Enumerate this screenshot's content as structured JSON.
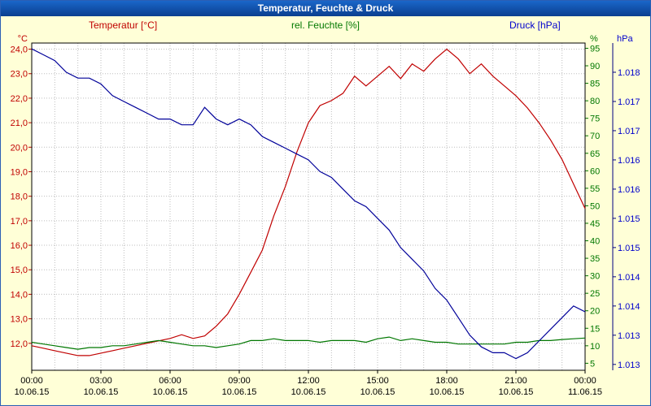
{
  "window": {
    "title": "Temperatur, Feuchte & Druck"
  },
  "colors": {
    "background": "#ffffd7",
    "titlebar": "#0a3f8f",
    "temperature": "#c00000",
    "humidity": "#007700",
    "pressure_line": "#000099",
    "pressure_text": "#0000cc",
    "grid": "#bdbdbd",
    "frame": "#000000"
  },
  "chart_data": {
    "type": "line",
    "title": "Temperatur, Feuchte & Druck",
    "grid": "dotted, hourly vertical and 1°C horizontal",
    "legend_position": "top",
    "x_axis": {
      "hours_total": 24,
      "tick_hours": [
        0,
        3,
        6,
        9,
        12,
        15,
        18,
        21,
        24
      ],
      "time_labels": [
        "00:00",
        "03:00",
        "06:00",
        "09:00",
        "12:00",
        "15:00",
        "18:00",
        "21:00",
        "00:00"
      ],
      "date_labels": [
        "10.06.15",
        "10.06.15",
        "10.06.15",
        "10.06.15",
        "10.06.15",
        "10.06.15",
        "10.06.15",
        "10.06.15",
        "11.06.15"
      ]
    },
    "axes": {
      "temperature": {
        "unit": "°C",
        "side": "left",
        "color": "#c00000",
        "top": 24.25,
        "bottom": 10.9,
        "tick_values": [
          24,
          23,
          22,
          21,
          20,
          19,
          18,
          17,
          16,
          15,
          14,
          13,
          12
        ],
        "tick_labels": [
          "24,0",
          "23,0",
          "22,0",
          "21,0",
          "20,0",
          "19,0",
          "18,0",
          "17,0",
          "16,0",
          "15,0",
          "14,0",
          "13,0",
          "12,0"
        ]
      },
      "humidity": {
        "unit": "%",
        "side": "right-inner",
        "color": "#007700",
        "top": 96.5,
        "bottom": 3,
        "tick_values": [
          95,
          90,
          85,
          80,
          75,
          70,
          65,
          60,
          55,
          50,
          45,
          40,
          35,
          30,
          25,
          20,
          15,
          10,
          5
        ],
        "tick_labels": [
          "95",
          "90",
          "85",
          "80",
          "75",
          "70",
          "65",
          "60",
          "55",
          "50",
          "45",
          "40",
          "35",
          "30",
          "25",
          "20",
          "15",
          "10",
          "5"
        ]
      },
      "pressure": {
        "unit": "hPa",
        "side": "right-outer",
        "color": "#0000cc",
        "top": 1018.5,
        "bottom": 1012.9,
        "tick_values": [
          1018,
          1017.5,
          1017,
          1016.5,
          1016,
          1015.5,
          1015,
          1014.5,
          1014,
          1013.5,
          1013
        ],
        "tick_labels": [
          "1.018",
          "1.017",
          "1.017",
          "1.016",
          "1.016",
          "1.015",
          "1.015",
          "1.014",
          "1.014",
          "1.013",
          "1.013"
        ]
      }
    },
    "series": [
      {
        "name": "Temperatur [°C]",
        "axis": "temperature",
        "color": "#c00000",
        "x_start": 0,
        "x_step": 0.5,
        "values": [
          11.9,
          11.8,
          11.7,
          11.6,
          11.5,
          11.5,
          11.6,
          11.7,
          11.8,
          11.9,
          12.0,
          12.1,
          12.2,
          12.35,
          12.2,
          12.3,
          12.7,
          13.2,
          14.0,
          14.9,
          15.8,
          17.2,
          18.4,
          19.8,
          21.0,
          21.7,
          21.9,
          22.2,
          22.9,
          22.5,
          22.9,
          23.3,
          22.8,
          23.4,
          23.1,
          23.6,
          24.0,
          23.6,
          23.0,
          23.4,
          22.9,
          22.5,
          22.1,
          21.6,
          21.0,
          20.3,
          19.5,
          18.5,
          17.5
        ]
      },
      {
        "name": "rel. Feuchte [%]",
        "axis": "humidity",
        "color": "#007700",
        "x_start": 0,
        "x_step": 0.5,
        "values": [
          11,
          10.5,
          10,
          9.5,
          9,
          9.5,
          9.5,
          10,
          10,
          10.5,
          11,
          11.5,
          11,
          10.5,
          10,
          10,
          9.5,
          10,
          10.5,
          11.5,
          11.5,
          12,
          11.5,
          11.5,
          11.5,
          11,
          11.5,
          11.5,
          11.5,
          11,
          12,
          12.5,
          11.5,
          12,
          11.5,
          11,
          11,
          10.5,
          10.5,
          10.5,
          10.5,
          10.5,
          11,
          11,
          11.5,
          11.5,
          11.8,
          12,
          12.2
        ]
      },
      {
        "name": "Druck [hPa]",
        "axis": "pressure",
        "color": "#000099",
        "x_start": 0,
        "x_step": 0.5,
        "values": [
          1018.4,
          1018.3,
          1018.2,
          1018.0,
          1017.9,
          1017.9,
          1017.8,
          1017.6,
          1017.5,
          1017.4,
          1017.3,
          1017.2,
          1017.2,
          1017.1,
          1017.1,
          1017.4,
          1017.2,
          1017.1,
          1017.2,
          1017.1,
          1016.9,
          1016.8,
          1016.7,
          1016.6,
          1016.5,
          1016.3,
          1016.2,
          1016.0,
          1015.8,
          1015.7,
          1015.5,
          1015.3,
          1015.0,
          1014.8,
          1014.6,
          1014.3,
          1014.1,
          1013.8,
          1013.5,
          1013.3,
          1013.2,
          1013.2,
          1013.1,
          1013.2,
          1013.4,
          1013.6,
          1013.8,
          1014.0,
          1013.9
        ]
      }
    ]
  }
}
